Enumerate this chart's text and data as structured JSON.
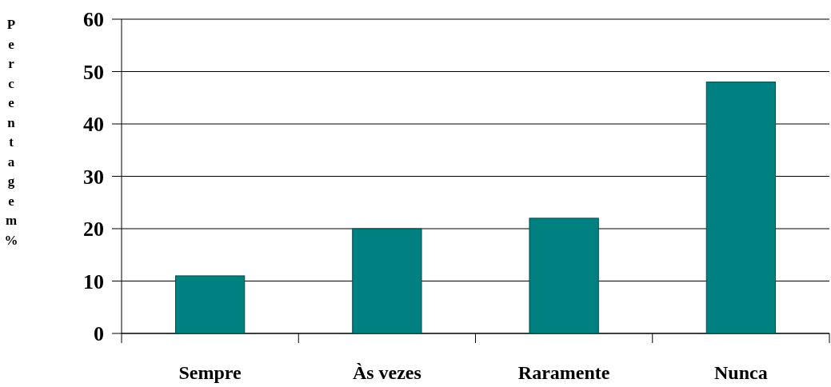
{
  "chart_data": {
    "type": "bar",
    "ylabel": "Percentagem %",
    "categories": [
      "Sempre",
      "Às vezes",
      "Raramente",
      "Nunca"
    ],
    "values": [
      11,
      20,
      22,
      48
    ],
    "color": "#008080",
    "ylim": [
      0,
      60
    ],
    "yticks": [
      0,
      10,
      20,
      30,
      40,
      50,
      60
    ],
    "grid": "y"
  }
}
